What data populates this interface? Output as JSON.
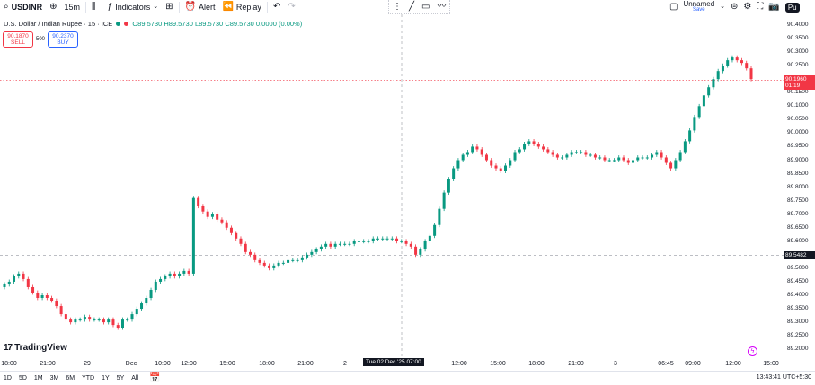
{
  "toolbar": {
    "symbol": "USDINR",
    "interval": "15m",
    "indicators_label": "Indicators",
    "alert_label": "Alert",
    "replay_label": "Replay",
    "layout_name": "Unnamed",
    "layout_status": "Save",
    "publish_label": "Pu"
  },
  "legend": {
    "title": "U.S. Dollar / Indian Rupee · 15 · ICE",
    "ohlc": "O89.5730 H89.5730 L89.5730 C89.5730 0.0000 (0.00%)"
  },
  "trade": {
    "sell_price": "90.1870",
    "sell_label": "SELL",
    "spread": "500",
    "buy_price": "90.2370",
    "buy_label": "BUY"
  },
  "brand": "TradingView",
  "price_axis": {
    "ticks": [
      "90.4000",
      "90.3500",
      "90.3000",
      "90.2500",
      "90.2000",
      "90.1500",
      "90.1000",
      "90.0500",
      "90.0000",
      "89.9500",
      "89.9000",
      "89.8500",
      "89.8000",
      "89.7500",
      "89.7000",
      "89.6500",
      "89.6000",
      "89.5500",
      "89.5000",
      "89.4500",
      "89.4000",
      "89.3500",
      "89.3000",
      "89.2500",
      "89.2000"
    ],
    "last_price": "90.1960",
    "countdown": "01:19",
    "crosshair_price": "89.5482"
  },
  "time_axis": {
    "labels": [
      "18:00",
      "21:00",
      "29",
      "Dec",
      "10:00",
      "12:00",
      "15:00",
      "18:00",
      "21:00",
      "2",
      "12:00",
      "15:00",
      "18:00",
      "21:00",
      "3",
      "06:45",
      "09:00",
      "12:00",
      "15:00"
    ],
    "crosshair_time": "Tue 02 Dec '25   07:00"
  },
  "bottom_bar": {
    "ranges": [
      "1D",
      "5D",
      "1M",
      "3M",
      "6M",
      "YTD",
      "1Y",
      "5Y",
      "All"
    ],
    "clock": "13:43:41 UTC+5:30"
  },
  "colors": {
    "up": "#089981",
    "down": "#f23645",
    "accent": "#2962ff"
  },
  "chart_data": {
    "type": "candlestick",
    "ylim": [
      89.2,
      90.4
    ],
    "close_series": [
      89.44,
      89.45,
      89.47,
      89.48,
      89.46,
      89.43,
      89.41,
      89.39,
      89.4,
      89.39,
      89.38,
      89.36,
      89.33,
      89.31,
      89.3,
      89.31,
      89.31,
      89.32,
      89.31,
      89.31,
      89.31,
      89.3,
      89.31,
      89.29,
      89.28,
      89.31,
      89.31,
      89.33,
      89.35,
      89.37,
      89.39,
      89.42,
      89.45,
      89.46,
      89.47,
      89.48,
      89.47,
      89.48,
      89.49,
      89.48,
      89.76,
      89.73,
      89.71,
      89.69,
      89.7,
      89.68,
      89.67,
      89.65,
      89.63,
      89.61,
      89.59,
      89.56,
      89.55,
      89.53,
      89.52,
      89.51,
      89.5,
      89.51,
      89.52,
      89.52,
      89.53,
      89.53,
      89.53,
      89.54,
      89.55,
      89.56,
      89.57,
      89.58,
      89.59,
      89.58,
      89.59,
      89.59,
      89.59,
      89.59,
      89.6,
      89.6,
      89.6,
      89.6,
      89.61,
      89.61,
      89.61,
      89.61,
      89.61,
      89.6,
      89.6,
      89.59,
      89.58,
      89.55,
      89.57,
      89.6,
      89.62,
      89.66,
      89.72,
      89.78,
      89.83,
      89.87,
      89.9,
      89.92,
      89.93,
      89.95,
      89.94,
      89.92,
      89.9,
      89.88,
      89.87,
      89.86,
      89.88,
      89.9,
      89.93,
      89.94,
      89.96,
      89.97,
      89.96,
      89.95,
      89.94,
      89.93,
      89.92,
      89.91,
      89.91,
      89.92,
      89.93,
      89.93,
      89.93,
      89.92,
      89.92,
      89.91,
      89.91,
      89.9,
      89.9,
      89.9,
      89.91,
      89.9,
      89.89,
      89.9,
      89.91,
      89.91,
      89.91,
      89.92,
      89.93,
      89.91,
      89.89,
      89.87,
      89.9,
      89.93,
      89.97,
      90.01,
      90.06,
      90.1,
      90.14,
      90.17,
      90.2,
      90.23,
      90.25,
      90.27,
      90.28,
      90.27,
      90.26,
      90.24,
      90.2
    ]
  }
}
